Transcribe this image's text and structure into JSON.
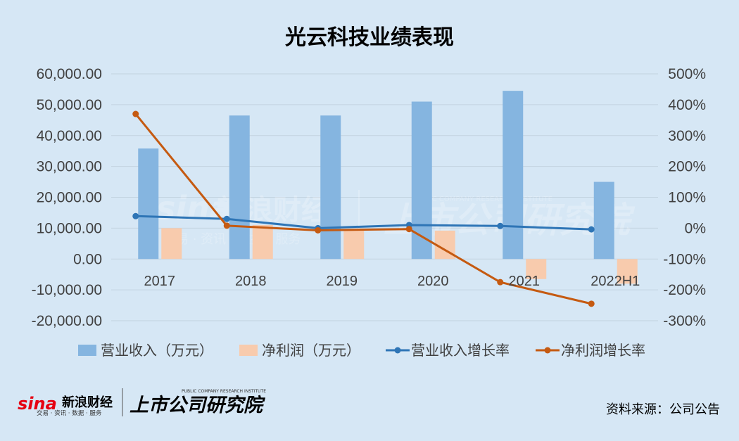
{
  "chart_data": {
    "type": "bar",
    "title": "光云科技业绩表现",
    "categories": [
      "2017",
      "2018",
      "2019",
      "2020",
      "2021",
      "2022H1"
    ],
    "series": [
      {
        "name": "营业收入（万元）",
        "type": "bar",
        "axis": "left",
        "color": "#85b5e0",
        "values": [
          35800,
          46500,
          46500,
          51000,
          54500,
          25000
        ]
      },
      {
        "name": "净利润（万元）",
        "type": "bar",
        "axis": "left",
        "color": "#f8cbad",
        "values": [
          10000,
          11000,
          9500,
          9200,
          -6500,
          -8000
        ]
      },
      {
        "name": "营业收入增长率",
        "type": "line",
        "axis": "right",
        "color": "#2e75b6",
        "values": [
          39,
          30,
          0,
          10,
          7,
          -4
        ]
      },
      {
        "name": "净利润增长率",
        "type": "line",
        "axis": "right",
        "color": "#c55a11",
        "values": [
          370,
          8,
          -7,
          -3,
          -175,
          -245
        ]
      }
    ],
    "left_axis": {
      "min": -20000,
      "max": 60000,
      "step": 10000,
      "tick_labels": [
        "60,000.00",
        "50,000.00",
        "40,000.00",
        "30,000.00",
        "20,000.00",
        "10,000.00",
        "0.00",
        "-10,000.00",
        "-20,000.00"
      ]
    },
    "right_axis": {
      "min": -300,
      "max": 500,
      "step": 100,
      "tick_labels": [
        "500%",
        "400%",
        "300%",
        "200%",
        "100%",
        "0%",
        "-100%",
        "-200%",
        "-300%"
      ]
    },
    "grid": true,
    "legend_position": "bottom"
  },
  "source_label": "资料来源：公司公告",
  "watermark": {
    "brand": "sina",
    "brand_cn": "新浪财经",
    "brand_sub": "交易 · 资讯 · 数据 · 服务",
    "institute_cn": "上市公司研究院",
    "institute_en": "PUBLIC COMPANY RESEARCH INSTITUTE"
  },
  "colors": {
    "background": "#d6e7f5",
    "grid": "#c3d3e0",
    "brand_red": "#e60012"
  }
}
